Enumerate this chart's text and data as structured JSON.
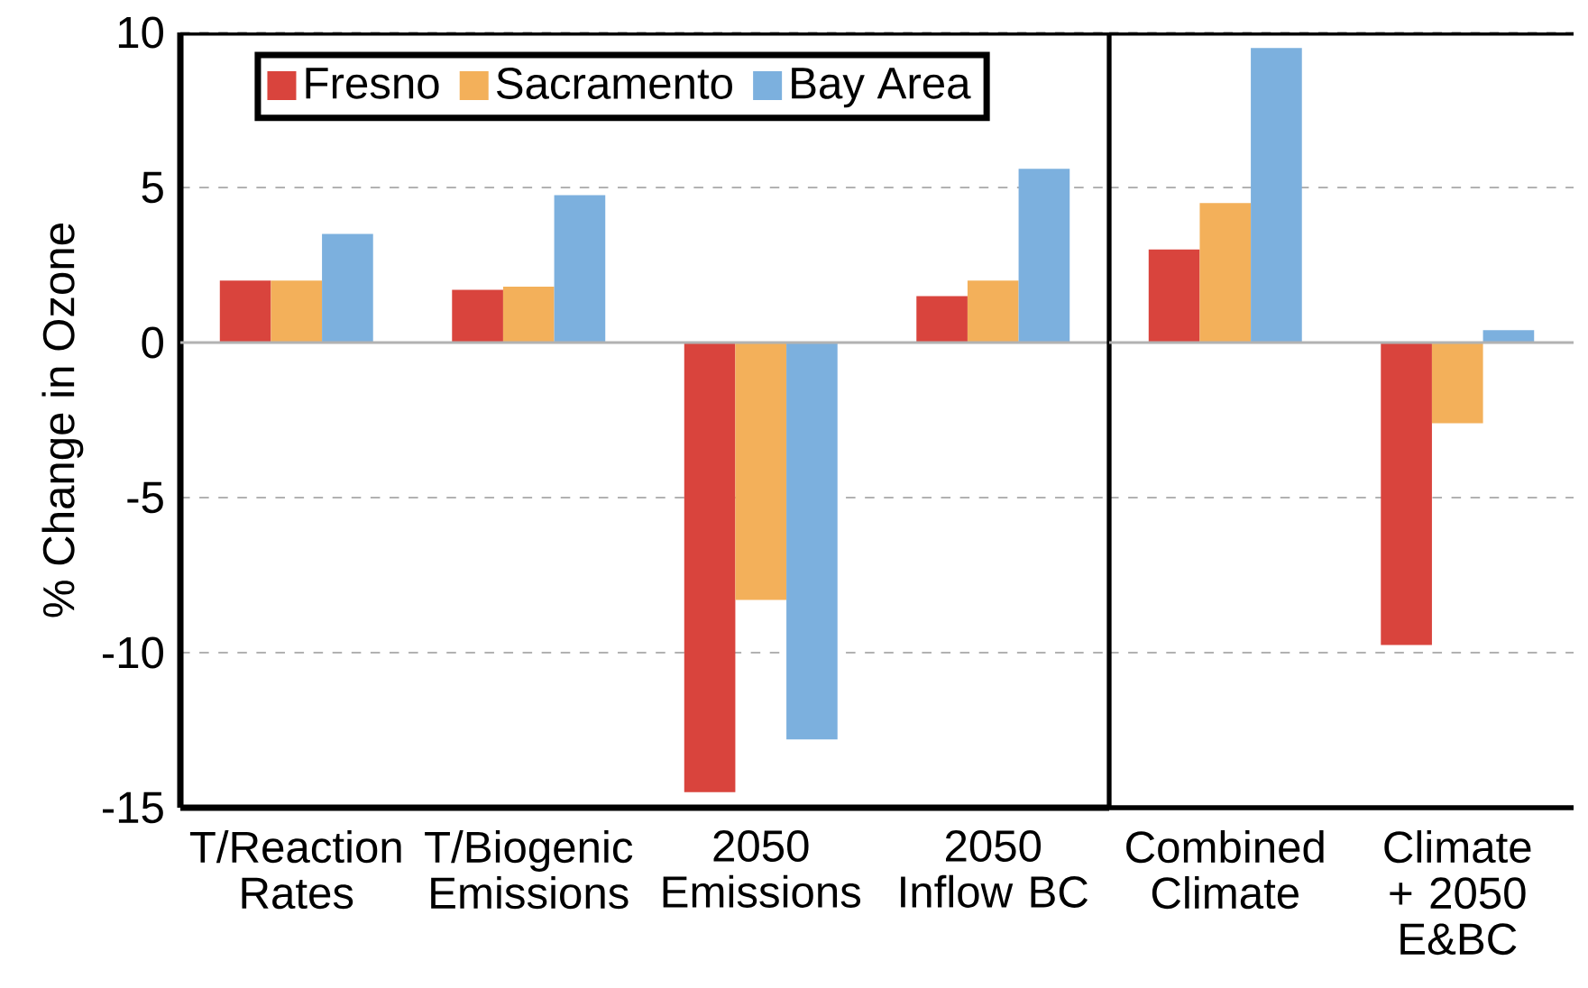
{
  "chart_data": [
    {
      "type": "bar",
      "ylabel": "% Change in Ozone",
      "categories": [
        "T/Reaction Rates",
        "T/Biogenic Emissions",
        "2050 Emissions",
        "2050 Inflow BC"
      ],
      "series": [
        {
          "name": "Fresno",
          "color": "#d9443d",
          "values": [
            2.0,
            1.7,
            -14.5,
            1.5
          ]
        },
        {
          "name": "Sacramento",
          "color": "#f3b05a",
          "values": [
            2.0,
            1.8,
            -8.3,
            2.0
          ]
        },
        {
          "name": "Bay Area",
          "color": "#7cb0de",
          "values": [
            3.5,
            4.75,
            -12.8,
            5.6
          ]
        }
      ],
      "ylim": [
        -15,
        10
      ],
      "yticks": [
        -15,
        -10,
        -5,
        0,
        5,
        10
      ],
      "grid": "y",
      "legend": "top left"
    },
    {
      "type": "bar",
      "categories": [
        "Combined Climate",
        "Climate + 2050 E&BC"
      ],
      "series": [
        {
          "color": "#d9443d",
          "values": [
            3.0,
            -9.75
          ]
        },
        {
          "color": "#f3b05a",
          "values": [
            4.5,
            -2.6
          ]
        },
        {
          "color": "#7cb0de",
          "values": [
            9.5,
            0.4
          ]
        }
      ],
      "ylim": [
        -15,
        10
      ],
      "grid": "y",
      "tick_labels": "x"
    }
  ]
}
